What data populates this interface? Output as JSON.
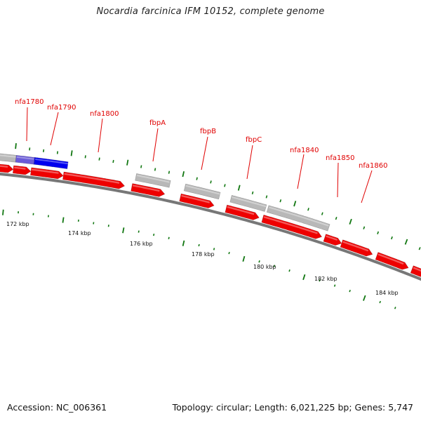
{
  "title": "Nocardia farcinica IFM 10152, complete genome",
  "footer": {
    "accession": "Accession: NC_006361",
    "summary": "Topology: circular; Length: 6,021,225 bp; Genes: 5,747"
  },
  "colors": {
    "cds": "#ee0000",
    "grey_feature": "#b8b8b8",
    "blue_feature": "#0000ee",
    "label": "#e00000",
    "tick": "#117711",
    "backbone": "#777777"
  },
  "gene_labels": [
    "nfa1780",
    "nfa1790",
    "nfa1800",
    "fbpA",
    "fbpB",
    "fbpC",
    "nfa1840",
    "nfa1850",
    "nfa1860"
  ],
  "tick_labels": [
    "172 kbp",
    "174 kbp",
    "176 kbp",
    "178 kbp",
    "180 kbp",
    "182 kbp",
    "184 kbp"
  ]
}
